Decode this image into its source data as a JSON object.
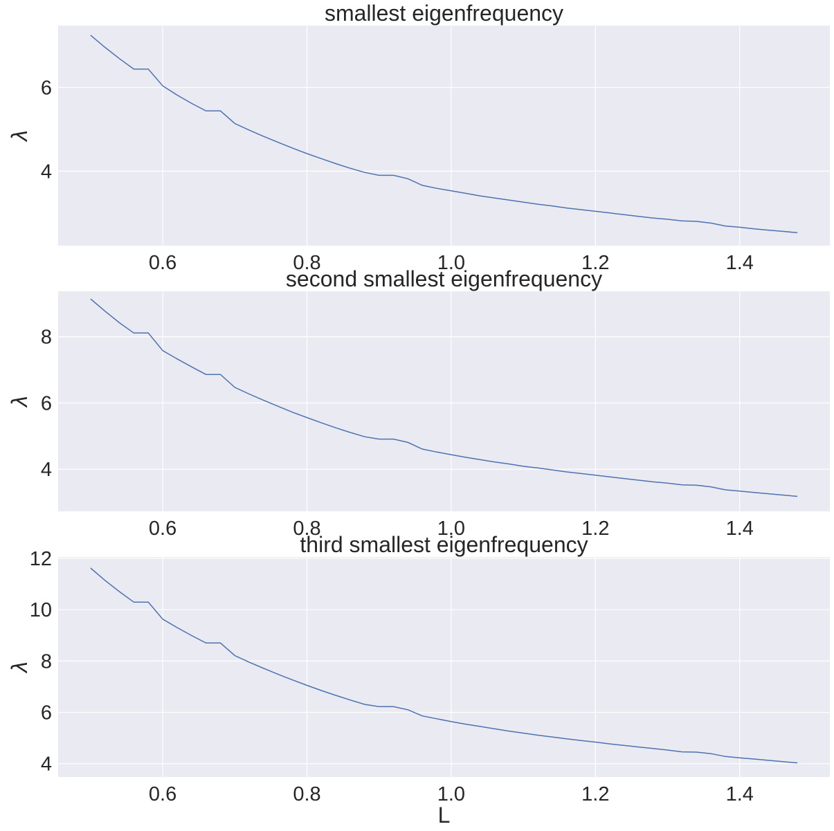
{
  "chart_data": [
    {
      "type": "line",
      "title": "smallest eigenfrequency",
      "xlabel": "",
      "ylabel": "λ",
      "xlim": [
        0.455,
        1.525
      ],
      "ylim": [
        2.22,
        7.48
      ],
      "xticks": [
        0.6,
        0.8,
        1.0,
        1.2,
        1.4
      ],
      "xtick_labels": [
        "0.6",
        "0.8",
        "1.0",
        "1.2",
        "1.4"
      ],
      "yticks": [
        4,
        6
      ],
      "ytick_labels": [
        "4",
        "6"
      ],
      "grid": true,
      "series": [
        {
          "color": "#4c72b0",
          "x": [
            0.5,
            0.52,
            0.54,
            0.56,
            0.58,
            0.6,
            0.62,
            0.64,
            0.66,
            0.68,
            0.7,
            0.72,
            0.74,
            0.76,
            0.78,
            0.8,
            0.82,
            0.84,
            0.86,
            0.88,
            0.9,
            0.92,
            0.94,
            0.96,
            0.98,
            1.0,
            1.02,
            1.04,
            1.06,
            1.08,
            1.1,
            1.12,
            1.14,
            1.16,
            1.18,
            1.2,
            1.22,
            1.24,
            1.26,
            1.28,
            1.3,
            1.32,
            1.34,
            1.36,
            1.38,
            1.4,
            1.42,
            1.44,
            1.46,
            1.48
          ],
          "y": [
            7.25,
            6.96,
            6.69,
            6.44,
            6.44,
            6.04,
            5.82,
            5.62,
            5.44,
            5.44,
            5.14,
            4.98,
            4.83,
            4.69,
            4.55,
            4.42,
            4.3,
            4.18,
            4.07,
            3.97,
            3.9,
            3.9,
            3.82,
            3.66,
            3.59,
            3.53,
            3.47,
            3.41,
            3.36,
            3.31,
            3.26,
            3.21,
            3.17,
            3.12,
            3.08,
            3.04,
            3.0,
            2.96,
            2.92,
            2.88,
            2.85,
            2.81,
            2.8,
            2.76,
            2.69,
            2.66,
            2.62,
            2.59,
            2.56,
            2.53
          ]
        }
      ]
    },
    {
      "type": "line",
      "title": "second smallest eigenfrequency",
      "xlabel": "",
      "ylabel": "λ",
      "xlim": [
        0.455,
        1.525
      ],
      "ylim": [
        2.73,
        9.37
      ],
      "xticks": [
        0.6,
        0.8,
        1.0,
        1.2,
        1.4
      ],
      "xtick_labels": [
        "0.6",
        "0.8",
        "1.0",
        "1.2",
        "1.4"
      ],
      "yticks": [
        4,
        6,
        8
      ],
      "ytick_labels": [
        "4",
        "6",
        "8"
      ],
      "grid": true,
      "series": [
        {
          "color": "#4c72b0",
          "x": [
            0.5,
            0.52,
            0.54,
            0.56,
            0.58,
            0.6,
            0.62,
            0.64,
            0.66,
            0.68,
            0.7,
            0.72,
            0.74,
            0.76,
            0.78,
            0.8,
            0.82,
            0.84,
            0.86,
            0.88,
            0.9,
            0.92,
            0.94,
            0.96,
            0.98,
            1.0,
            1.02,
            1.04,
            1.06,
            1.08,
            1.1,
            1.12,
            1.14,
            1.16,
            1.18,
            1.2,
            1.22,
            1.24,
            1.26,
            1.28,
            1.3,
            1.32,
            1.34,
            1.36,
            1.38,
            1.4,
            1.42,
            1.44,
            1.46,
            1.48
          ],
          "y": [
            9.14,
            8.77,
            8.42,
            8.11,
            8.11,
            7.58,
            7.33,
            7.09,
            6.86,
            6.86,
            6.47,
            6.27,
            6.08,
            5.9,
            5.72,
            5.56,
            5.4,
            5.25,
            5.11,
            4.98,
            4.91,
            4.91,
            4.81,
            4.61,
            4.52,
            4.44,
            4.36,
            4.29,
            4.22,
            4.16,
            4.09,
            4.04,
            3.98,
            3.92,
            3.87,
            3.82,
            3.77,
            3.72,
            3.67,
            3.62,
            3.58,
            3.53,
            3.52,
            3.47,
            3.38,
            3.34,
            3.3,
            3.26,
            3.22,
            3.18
          ]
        }
      ]
    },
    {
      "type": "line",
      "title": "third smallest eigenfrequency",
      "xlabel": "L",
      "ylabel": "λ",
      "xlim": [
        0.455,
        1.525
      ],
      "ylim": [
        3.48,
        12.05
      ],
      "xticks": [
        0.6,
        0.8,
        1.0,
        1.2,
        1.4
      ],
      "xtick_labels": [
        "0.6",
        "0.8",
        "1.0",
        "1.2",
        "1.4"
      ],
      "yticks": [
        4,
        6,
        8,
        10,
        12
      ],
      "ytick_labels": [
        "4",
        "6",
        "8",
        "10",
        "12"
      ],
      "grid": true,
      "series": [
        {
          "color": "#4c72b0",
          "x": [
            0.5,
            0.52,
            0.54,
            0.56,
            0.58,
            0.6,
            0.62,
            0.64,
            0.66,
            0.68,
            0.7,
            0.72,
            0.74,
            0.76,
            0.78,
            0.8,
            0.82,
            0.84,
            0.86,
            0.88,
            0.9,
            0.92,
            0.94,
            0.96,
            0.98,
            1.0,
            1.02,
            1.04,
            1.06,
            1.08,
            1.1,
            1.12,
            1.14,
            1.16,
            1.18,
            1.2,
            1.22,
            1.24,
            1.26,
            1.28,
            1.3,
            1.32,
            1.34,
            1.36,
            1.38,
            1.4,
            1.42,
            1.44,
            1.46,
            1.48
          ],
          "y": [
            11.62,
            11.14,
            10.7,
            10.29,
            10.29,
            9.63,
            9.3,
            8.99,
            8.7,
            8.7,
            8.21,
            7.95,
            7.71,
            7.48,
            7.26,
            7.05,
            6.85,
            6.66,
            6.48,
            6.31,
            6.22,
            6.22,
            6.1,
            5.86,
            5.75,
            5.64,
            5.54,
            5.45,
            5.36,
            5.27,
            5.19,
            5.11,
            5.04,
            4.97,
            4.9,
            4.84,
            4.77,
            4.71,
            4.65,
            4.59,
            4.53,
            4.46,
            4.45,
            4.39,
            4.28,
            4.23,
            4.18,
            4.13,
            4.08,
            4.03
          ]
        }
      ]
    }
  ]
}
